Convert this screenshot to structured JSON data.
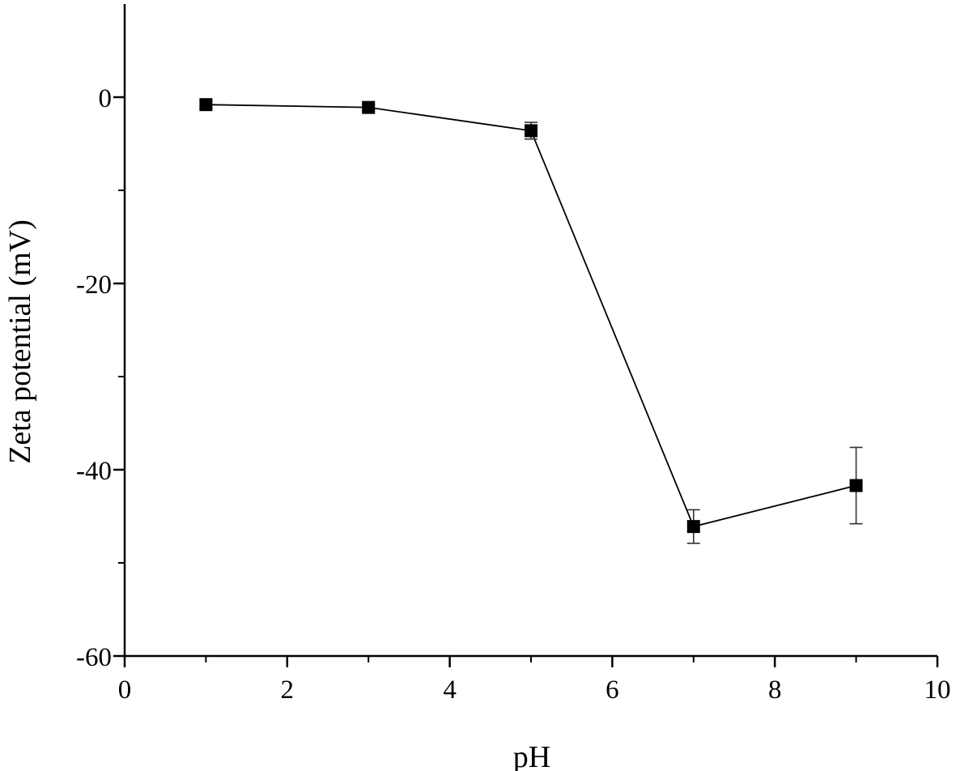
{
  "chart_data": {
    "type": "scatter",
    "title": "",
    "xlabel": "pH",
    "ylabel": "Zeta potential (mV)",
    "xlim": [
      0,
      10
    ],
    "ylim": [
      -60,
      10
    ],
    "x_ticks": [
      0,
      2,
      4,
      6,
      8,
      10
    ],
    "y_ticks": [
      -60,
      -40,
      -20,
      0
    ],
    "y_minor_ticks": [
      -50,
      -30,
      -10
    ],
    "grid": false,
    "legend": "none",
    "marker": "filled-square",
    "connected": true,
    "color": "#000000",
    "series": [
      {
        "points": [
          {
            "x": 1,
            "y": -0.8,
            "err": 0.4
          },
          {
            "x": 3,
            "y": -1.1,
            "err": 0.3
          },
          {
            "x": 5,
            "y": -3.6,
            "err": 0.9
          },
          {
            "x": 7,
            "y": -46.1,
            "err": 1.8
          },
          {
            "x": 9,
            "y": -41.7,
            "err": 4.1
          }
        ]
      }
    ]
  }
}
